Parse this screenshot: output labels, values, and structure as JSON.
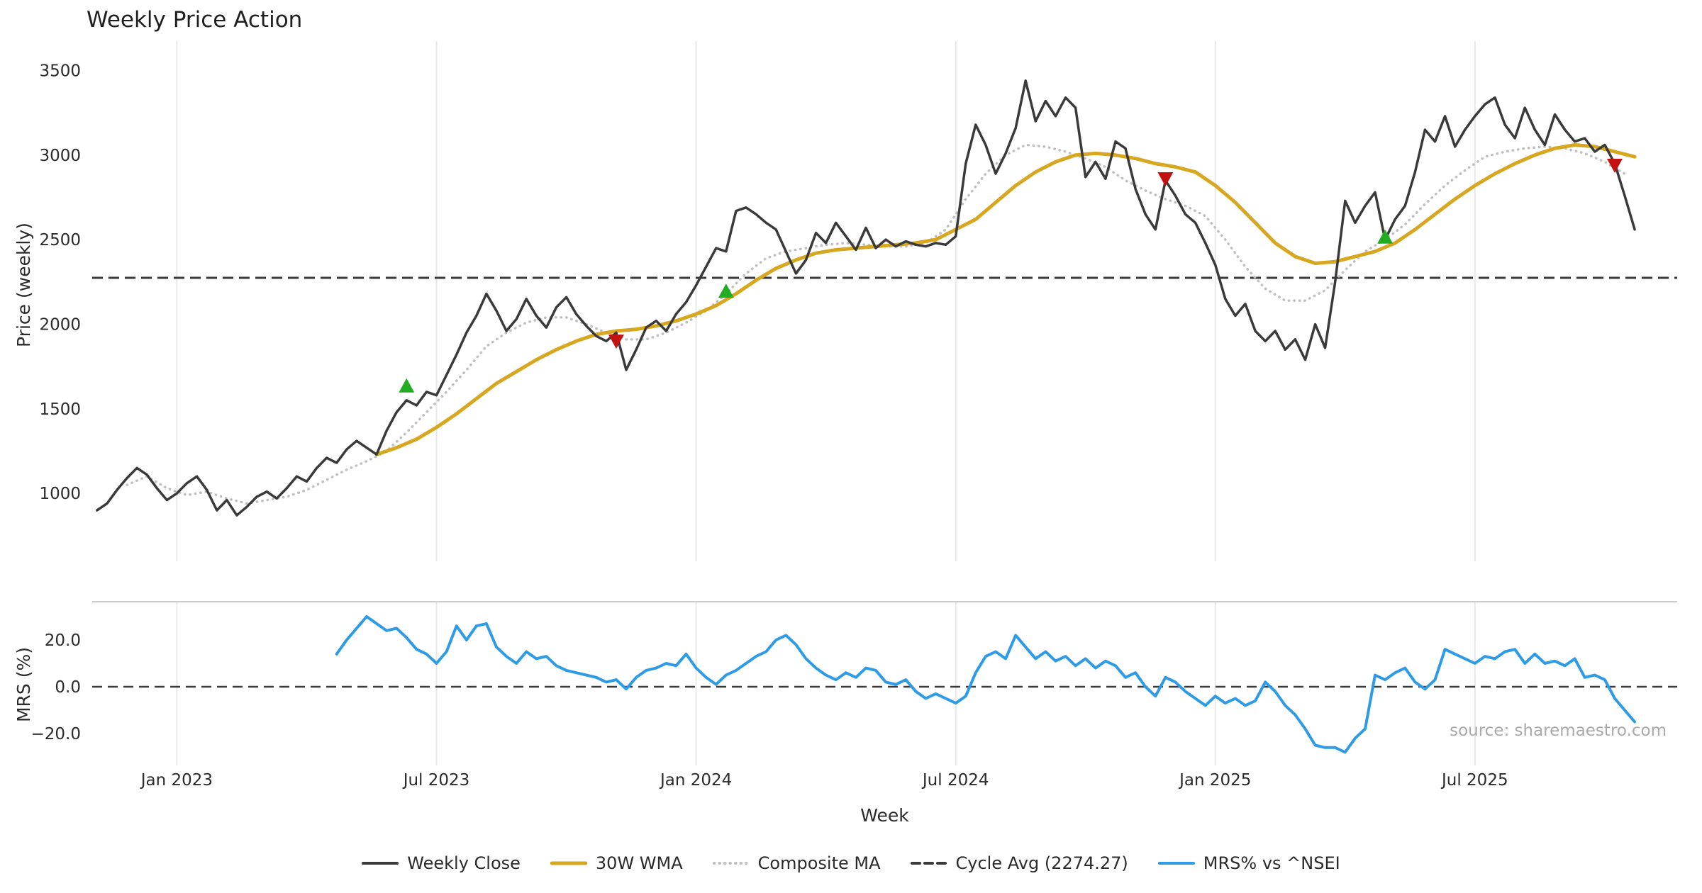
{
  "title": "Weekly Price Action",
  "price_axis_label": "Price (weekly)",
  "mrs_axis_label": "MRS (%)",
  "x_axis_label": "Week",
  "source_note": "source: sharemaestro.com",
  "colors": {
    "weekly_close": "#3a3a3a",
    "wma": "#d7a71f",
    "composite": "#c0c0c0",
    "cycle_avg": "#3a3a3a",
    "mrs": "#2e9be6",
    "buy_marker": "#22ac22",
    "sell_marker": "#c41212",
    "grid": "#e8e8e8",
    "panel_divider": "#cbcbcb",
    "zero_line": "#3a3a3a",
    "tick_text": "#2b2b2b"
  },
  "chart_data": {
    "type": "line",
    "x_unit": "week_index",
    "x_tick_weeks": [
      8,
      34,
      60,
      86,
      112,
      138
    ],
    "x_tick_labels": [
      "Jan 2023",
      "Jul 2023",
      "Jan 2024",
      "Jul 2024",
      "Jan 2025",
      "Jul 2025"
    ],
    "price_panel": {
      "ylabel": "Price (weekly)",
      "yticks": [
        1000,
        1500,
        2000,
        2500,
        3000,
        3500
      ],
      "ylim": [
        830,
        3660
      ],
      "cycle_avg": 2274.27,
      "series": [
        {
          "name": "Weekly Close",
          "start_week": 0,
          "week_step": 1,
          "values": [
            900,
            940,
            1020,
            1090,
            1150,
            1110,
            1030,
            960,
            1000,
            1060,
            1100,
            1020,
            900,
            960,
            870,
            920,
            980,
            1010,
            970,
            1030,
            1100,
            1070,
            1150,
            1210,
            1180,
            1260,
            1310,
            1270,
            1230,
            1370,
            1480,
            1550,
            1520,
            1600,
            1580,
            1700,
            1820,
            1950,
            2050,
            2180,
            2080,
            1960,
            2030,
            2150,
            2050,
            1980,
            2100,
            2160,
            2060,
            1990,
            1930,
            1900,
            1950,
            1730,
            1850,
            1980,
            2020,
            1960,
            2060,
            2130,
            2230,
            2340,
            2450,
            2430,
            2670,
            2690,
            2650,
            2600,
            2560,
            2430,
            2300,
            2380,
            2540,
            2480,
            2600,
            2520,
            2440,
            2570,
            2450,
            2500,
            2460,
            2490,
            2470,
            2460,
            2480,
            2470,
            2520,
            2950,
            3180,
            3060,
            2890,
            3010,
            3160,
            3440,
            3200,
            3320,
            3230,
            3340,
            3280,
            2870,
            2960,
            2860,
            3080,
            3040,
            2800,
            2650,
            2560,
            2850,
            2760,
            2650,
            2600,
            2480,
            2350,
            2150,
            2050,
            2120,
            1960,
            1900,
            1960,
            1850,
            1910,
            1790,
            2000,
            1860,
            2250,
            2730,
            2600,
            2700,
            2780,
            2500,
            2620,
            2700,
            2900,
            3150,
            3080,
            3230,
            3050,
            3150,
            3230,
            3300,
            3340,
            3180,
            3100,
            3280,
            3150,
            3060,
            3240,
            3150,
            3080,
            3100,
            3020,
            3060,
            2950,
            2760,
            2560
          ]
        },
        {
          "name": "30W WMA",
          "start_week": 28,
          "week_step": 2,
          "values": [
            1230,
            1270,
            1320,
            1390,
            1470,
            1560,
            1650,
            1720,
            1790,
            1850,
            1900,
            1940,
            1960,
            1970,
            1990,
            2020,
            2060,
            2110,
            2180,
            2260,
            2330,
            2380,
            2420,
            2440,
            2450,
            2460,
            2470,
            2480,
            2500,
            2560,
            2620,
            2720,
            2820,
            2900,
            2960,
            3000,
            3010,
            3000,
            2980,
            2950,
            2930,
            2900,
            2820,
            2720,
            2600,
            2480,
            2400,
            2360,
            2370,
            2400,
            2430,
            2480,
            2560,
            2650,
            2740,
            2820,
            2890,
            2950,
            3000,
            3040,
            3060,
            3050,
            3020,
            2990
          ]
        },
        {
          "name": "Composite MA",
          "start_week": 3,
          "week_step": 2,
          "values": [
            1050,
            1100,
            1030,
            990,
            1010,
            970,
            940,
            960,
            980,
            1020,
            1080,
            1140,
            1190,
            1250,
            1360,
            1480,
            1600,
            1730,
            1870,
            1950,
            2010,
            2040,
            2040,
            2000,
            1950,
            1910,
            1910,
            1950,
            2010,
            2080,
            2180,
            2300,
            2390,
            2430,
            2450,
            2470,
            2480,
            2470,
            2460,
            2460,
            2480,
            2560,
            2740,
            2890,
            3000,
            3060,
            3050,
            3020,
            2980,
            2930,
            2850,
            2790,
            2740,
            2700,
            2640,
            2500,
            2340,
            2210,
            2140,
            2140,
            2200,
            2320,
            2430,
            2500,
            2590,
            2710,
            2820,
            2910,
            2990,
            3020,
            3040,
            3050,
            3040,
            3010,
            2960,
            2890
          ]
        }
      ],
      "buy_signals": [
        {
          "week": 31,
          "price": 1630
        },
        {
          "week": 63,
          "price": 2190
        },
        {
          "week": 129,
          "price": 2510
        }
      ],
      "sell_signals": [
        {
          "week": 52,
          "price": 1905
        },
        {
          "week": 107,
          "price": 2865
        },
        {
          "week": 152,
          "price": 2945
        }
      ]
    },
    "mrs_panel": {
      "ylabel": "MRS (%)",
      "yticks": [
        20,
        0,
        -20
      ],
      "ytick_labels": [
        "20.0",
        "0.0",
        "−20.0"
      ],
      "ylim": [
        -32,
        36
      ],
      "zero_line": 0,
      "series": [
        {
          "name": "MRS% vs ^NSEI",
          "start_week": 24,
          "week_step": 1,
          "values": [
            14,
            20,
            25,
            30,
            27,
            24,
            25,
            21,
            16,
            14,
            10,
            15,
            26,
            20,
            26,
            27,
            17,
            13,
            10,
            15,
            12,
            13,
            9,
            7,
            6,
            5,
            4,
            2,
            3,
            -1,
            4,
            7,
            8,
            10,
            9,
            14,
            8,
            4,
            1,
            5,
            7,
            10,
            13,
            15,
            20,
            22,
            18,
            12,
            8,
            5,
            3,
            6,
            4,
            8,
            7,
            2,
            1,
            3,
            -2,
            -5,
            -3,
            -5,
            -7,
            -4,
            6,
            13,
            15,
            12,
            22,
            17,
            12,
            15,
            11,
            13,
            9,
            12,
            8,
            11,
            9,
            4,
            6,
            0,
            -4,
            4,
            2,
            -2,
            -5,
            -8,
            -4,
            -7,
            -5,
            -8,
            -6,
            2,
            -2,
            -8,
            -12,
            -18,
            -25,
            -26,
            -26,
            -28,
            -22,
            -18,
            5,
            3,
            6,
            8,
            2,
            -1,
            3,
            16,
            14,
            12,
            10,
            13,
            12,
            15,
            16,
            10,
            14,
            10,
            11,
            9,
            12,
            4,
            5,
            3,
            -5,
            -10,
            -15
          ]
        }
      ]
    },
    "legend": [
      {
        "label": "Weekly Close",
        "style": "solid",
        "color_key": "weekly_close"
      },
      {
        "label": "30W WMA",
        "style": "solid",
        "color_key": "wma"
      },
      {
        "label": "Composite MA",
        "style": "dotted",
        "color_key": "composite"
      },
      {
        "label": "Cycle Avg (2274.27)",
        "style": "dashed",
        "color_key": "cycle_avg"
      },
      {
        "label": "MRS% vs ^NSEI",
        "style": "solid",
        "color_key": "mrs"
      }
    ]
  }
}
